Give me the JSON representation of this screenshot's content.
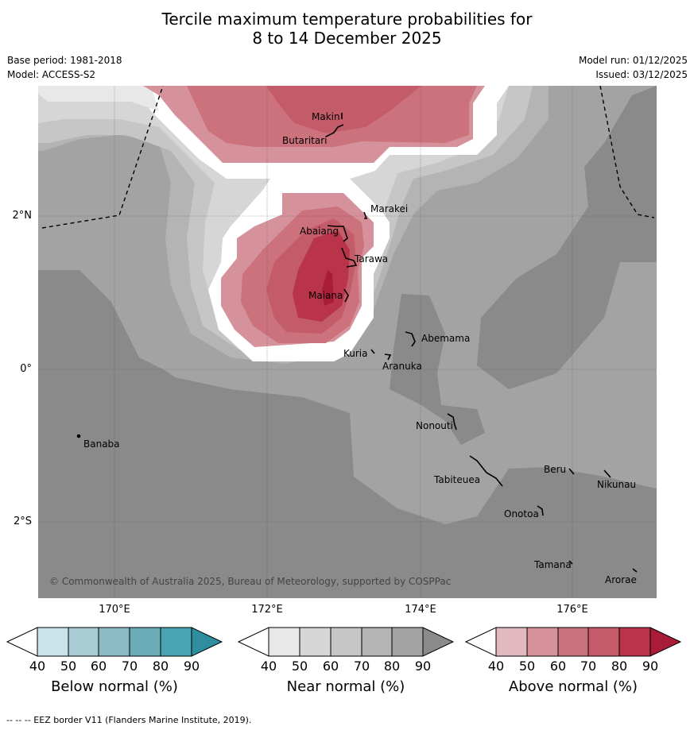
{
  "title_line1": "Tercile maximum temperature probabilities for",
  "title_line2": "8 to 14 December 2025",
  "base_period": "Base period: 1981-2018",
  "model": "Model: ACCESS-S2",
  "model_run": "Model run: 01/12/2025",
  "issued": "Issued: 03/12/2025",
  "copyright": "© Commonwealth of Australia 2025, Bureau of Meteorology, supported by COSPPac",
  "lon_labels": [
    "170°E",
    "172°E",
    "174°E",
    "176°E"
  ],
  "lat_labels": [
    "2°N",
    "0°",
    "2°S"
  ],
  "places": {
    "makin": "Makin",
    "butaritari": "Butaritari",
    "marakei": "Marakei",
    "abaiang": "Abaiang",
    "tarawa": "Tarawa",
    "maiana": "Maiana",
    "abemama": "Abemama",
    "kuria": "Kuria",
    "aranuka": "Aranuka",
    "nonouti": "Nonouti",
    "banaba": "Banaba",
    "tabiteuea": "Tabiteuea",
    "beru": "Beru",
    "nikunau": "Nikunau",
    "onotoa": "Onotoa",
    "tamana": "Tamana",
    "arorae": "Arorae"
  },
  "colorbars": {
    "ticks": [
      "40",
      "50",
      "60",
      "70",
      "80",
      "90"
    ],
    "below": {
      "caption": "Below normal (%)",
      "colors": [
        "#ffffff",
        "#c9e3ea",
        "#a9cbd3",
        "#8bb9c4",
        "#6aacb8",
        "#4aa3b1",
        "#2e8ea0"
      ]
    },
    "near": {
      "caption": "Near normal (%)",
      "colors": [
        "#ffffff",
        "#e8e8e8",
        "#d6d6d6",
        "#c6c6c6",
        "#b4b4b4",
        "#a3a3a3",
        "#8a8a8a"
      ]
    },
    "above": {
      "caption": "Above normal (%)",
      "colors": [
        "#ffffff",
        "#e2b9bf",
        "#d6929b",
        "#cc727c",
        "#c35b68",
        "#b93349",
        "#a81c38"
      ]
    }
  },
  "footnote": "--  --  -- EEZ border V11 (Flanders Marine Institute, 2019)."
}
